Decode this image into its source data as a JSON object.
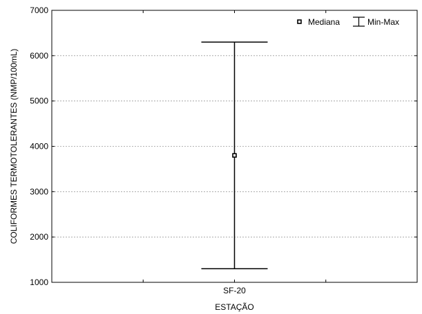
{
  "chart_data": {
    "type": "boxplot",
    "xlabel": "ESTAÇÃO",
    "ylabel": "COLIFORMES TERMOTOLERANTES (NMP/100mL)",
    "categories": [
      "SF-20"
    ],
    "series": [
      {
        "category": "SF-20",
        "median": 3800,
        "min": 1300,
        "max": 6300
      }
    ],
    "ylim": [
      1000,
      7000
    ],
    "yticks": [
      1000,
      2000,
      3000,
      4000,
      5000,
      6000,
      7000
    ],
    "grid": "horizontal dashed",
    "legend": {
      "position": "top-right",
      "entries": [
        {
          "label": "Mediana",
          "symbol": "square-marker"
        },
        {
          "label": "Min-Max",
          "symbol": "whisker"
        }
      ]
    }
  }
}
